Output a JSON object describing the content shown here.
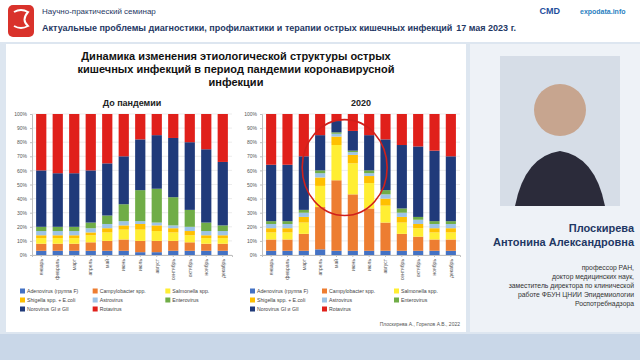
{
  "slide": {
    "header": {
      "subtitle": "Научно-практический семинар",
      "title": "Актуальные проблемы диагностики, профилактики и терапии острых кишечных инфекций",
      "date": "17 мая 2023 г.",
      "logos": [
        "CMD",
        "expodata.info"
      ]
    },
    "title_lines": [
      "Динамика изменения этиологической структуры острых",
      "кишечных инфекций в период пандемии коронавирусной",
      "инфекции"
    ],
    "source": "Плоскирева А., Горелов А.В., 2022",
    "speaker": {
      "name_lines": [
        "Плоскирева",
        "Антонина Александровна"
      ],
      "position_lines": [
        "профессор РАН,",
        "доктор медицинских наук,",
        "заместитель директора по клинической",
        "работе ФБУН ЦНИИ Эпидемиологии",
        "Роспотребнадзора"
      ]
    }
  },
  "chart_data": [
    {
      "type": "bar",
      "stacked": true,
      "grid": true,
      "legend": "bottom",
      "title": "До пандемии",
      "categories": [
        "январь",
        "февраль",
        "март",
        "апрель",
        "май",
        "июнь",
        "июль",
        "август",
        "сентябрь",
        "октябрь",
        "ноябрь",
        "декабрь"
      ],
      "ylim": [
        0,
        100
      ],
      "yticks": [
        {
          "value": 0,
          "label": "0%"
        },
        {
          "value": 10,
          "label": "10%"
        },
        {
          "value": 20,
          "label": "20%"
        },
        {
          "value": 30,
          "label": "30%"
        },
        {
          "value": 40,
          "label": "40%"
        },
        {
          "value": 50,
          "label": "50%"
        },
        {
          "value": 60,
          "label": "60%"
        },
        {
          "value": 70,
          "label": "70%"
        },
        {
          "value": 80,
          "label": "80%"
        },
        {
          "value": 90,
          "label": "90%"
        },
        {
          "value": 100,
          "label": "100%"
        }
      ],
      "series": [
        {
          "name": "Adenovirus (группа F)",
          "color": "#4472c4",
          "values": [
            3,
            3,
            3,
            3,
            3,
            3,
            2,
            2,
            3,
            3,
            3,
            3
          ]
        },
        {
          "name": "Campylobacter spp.",
          "color": "#ed7d31",
          "values": [
            5,
            5,
            5,
            6,
            7,
            8,
            8,
            8,
            7,
            6,
            5,
            5
          ]
        },
        {
          "name": "Salmonella spp.",
          "color": "#ffee33",
          "values": [
            4,
            4,
            4,
            5,
            6,
            7,
            8,
            7,
            6,
            5,
            4,
            4
          ]
        },
        {
          "name": "Shigella spp. + E.coli",
          "color": "#ffc000",
          "values": [
            2,
            2,
            2,
            2,
            3,
            3,
            4,
            4,
            3,
            3,
            2,
            2
          ]
        },
        {
          "name": "Astrovirus",
          "color": "#9dc3e6",
          "values": [
            3,
            3,
            3,
            3,
            3,
            3,
            2,
            2,
            2,
            3,
            3,
            3
          ]
        },
        {
          "name": "Enterovirus",
          "color": "#70ad47",
          "values": [
            3,
            3,
            3,
            4,
            6,
            12,
            22,
            24,
            20,
            12,
            6,
            4
          ]
        },
        {
          "name": "Norovirus GI и GII",
          "color": "#203a7a",
          "values": [
            40,
            38,
            38,
            37,
            37,
            34,
            36,
            38,
            42,
            48,
            52,
            45
          ]
        },
        {
          "name": "Rotavirus",
          "color": "#e0201b",
          "values": [
            40,
            42,
            42,
            40,
            35,
            30,
            18,
            15,
            17,
            20,
            25,
            34
          ]
        }
      ]
    },
    {
      "type": "bar",
      "stacked": true,
      "grid": true,
      "legend": "bottom",
      "title": "2020",
      "categories": [
        "январь",
        "февраль",
        "март",
        "апрель",
        "май",
        "июнь",
        "июль",
        "август",
        "сентябрь",
        "октябрь",
        "ноябрь",
        "декабрь"
      ],
      "ylim": [
        0,
        100
      ],
      "yticks": [
        {
          "value": 0,
          "label": "0%"
        },
        {
          "value": 10,
          "label": "10%"
        },
        {
          "value": 20,
          "label": "20%"
        },
        {
          "value": 30,
          "label": "30%"
        },
        {
          "value": 40,
          "label": "40%"
        },
        {
          "value": 50,
          "label": "50%"
        },
        {
          "value": 60,
          "label": "60%"
        },
        {
          "value": 70,
          "label": "70%"
        },
        {
          "value": 80,
          "label": "80%"
        },
        {
          "value": 90,
          "label": "90%"
        },
        {
          "value": 100,
          "label": "100%"
        }
      ],
      "series": [
        {
          "name": "Adenovirus (группа F)",
          "color": "#4472c4",
          "values": [
            3,
            3,
            3,
            4,
            3,
            3,
            3,
            3,
            3,
            3,
            3,
            3
          ]
        },
        {
          "name": "Campylobacter spp.",
          "color": "#ed7d31",
          "values": [
            8,
            8,
            12,
            30,
            50,
            40,
            30,
            20,
            12,
            10,
            8,
            8
          ]
        },
        {
          "name": "Salmonella spp.",
          "color": "#ffee33",
          "values": [
            5,
            5,
            8,
            15,
            25,
            22,
            18,
            12,
            8,
            6,
            5,
            5
          ]
        },
        {
          "name": "Shigella spp. + E.coli",
          "color": "#ffc000",
          "values": [
            3,
            3,
            4,
            6,
            6,
            6,
            5,
            5,
            4,
            3,
            3,
            3
          ]
        },
        {
          "name": "Astrovirus",
          "color": "#9dc3e6",
          "values": [
            3,
            3,
            3,
            3,
            2,
            2,
            2,
            3,
            3,
            3,
            3,
            3
          ]
        },
        {
          "name": "Enterovirus",
          "color": "#70ad47",
          "values": [
            2,
            2,
            2,
            2,
            1,
            1,
            2,
            3,
            3,
            2,
            2,
            2
          ]
        },
        {
          "name": "Norovirus GI и GII",
          "color": "#203a7a",
          "values": [
            40,
            40,
            38,
            25,
            8,
            14,
            25,
            36,
            45,
            50,
            50,
            46
          ]
        },
        {
          "name": "Rotavirus",
          "color": "#e0201b",
          "values": [
            36,
            36,
            30,
            15,
            5,
            12,
            15,
            18,
            22,
            23,
            26,
            30
          ]
        }
      ]
    }
  ]
}
